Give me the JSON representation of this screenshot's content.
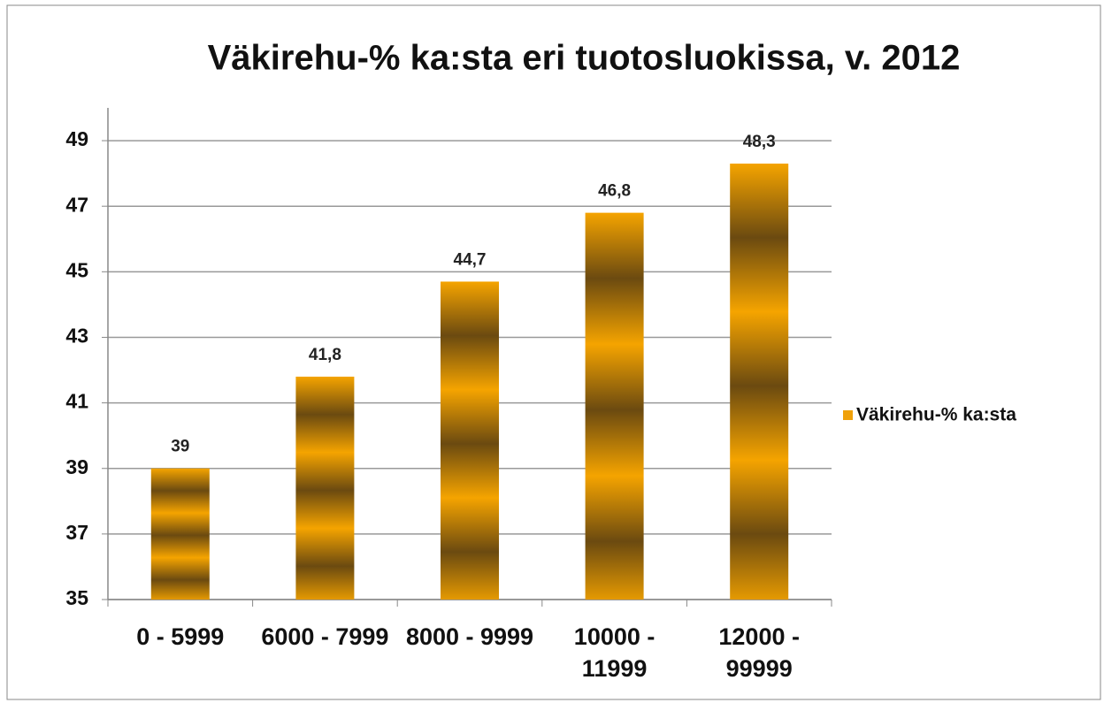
{
  "chart_data": {
    "type": "bar",
    "title": "Väkirehu-% ka:sta eri tuotosluokissa, v. 2012",
    "categories": [
      "0 - 5999",
      "6000 - 7999",
      "8000 - 9999",
      "10000 - 11999",
      "12000 - 99999"
    ],
    "series": [
      {
        "name": "Väkirehu-% ka:sta",
        "color": "#f0a10a",
        "values": [
          39,
          41.8,
          44.7,
          46.8,
          48.3
        ],
        "value_labels": [
          "39",
          "41,8",
          "44,7",
          "46,8",
          "48,3"
        ]
      }
    ],
    "ylim": [
      35,
      50
    ],
    "yticks": [
      35,
      37,
      39,
      41,
      43,
      45,
      47,
      49
    ],
    "grid": true,
    "legend": "right"
  }
}
